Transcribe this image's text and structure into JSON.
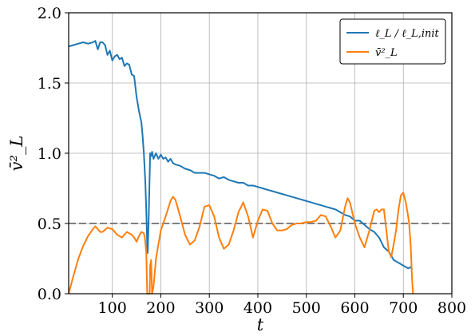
{
  "chart_data": {
    "type": "line",
    "title": "",
    "xlabel": "t",
    "ylabel": "v̄²_L",
    "xlim": [
      10,
      800
    ],
    "ylim": [
      0.0,
      2.0
    ],
    "xticks": [
      100,
      200,
      300,
      400,
      500,
      600,
      700,
      800
    ],
    "yticks": [
      0.0,
      0.5,
      1.0,
      1.5,
      2.0
    ],
    "xtick_labels": [
      "100",
      "200",
      "300",
      "400",
      "500",
      "600",
      "700",
      "800"
    ],
    "ytick_labels": [
      "0.0",
      "0.5",
      "1.0",
      "1.5",
      "2.0"
    ],
    "grid": true,
    "legend_position": "top-right",
    "hline": {
      "y": 0.5,
      "style": "dashed",
      "color": "#808080"
    },
    "series": [
      {
        "name": "ℓ_L / ℓ_L,init",
        "color": "#1f77b4",
        "x": [
          10,
          20,
          30,
          40,
          50,
          60,
          65,
          70,
          75,
          80,
          85,
          90,
          95,
          100,
          105,
          110,
          115,
          120,
          125,
          130,
          135,
          140,
          145,
          150,
          155,
          160,
          162,
          165,
          168,
          170,
          172,
          173,
          175,
          178,
          180,
          182,
          185,
          190,
          195,
          200,
          205,
          210,
          215,
          220,
          225,
          230,
          240,
          250,
          260,
          270,
          280,
          290,
          300,
          310,
          320,
          330,
          340,
          350,
          360,
          370,
          380,
          390,
          400,
          410,
          420,
          430,
          440,
          450,
          460,
          470,
          480,
          490,
          500,
          510,
          520,
          530,
          540,
          550,
          560,
          570,
          580,
          590,
          600,
          610,
          620,
          630,
          640,
          650,
          660,
          670,
          680,
          690,
          700,
          710,
          715,
          718
        ],
        "y": [
          1.76,
          1.77,
          1.78,
          1.79,
          1.78,
          1.79,
          1.8,
          1.74,
          1.79,
          1.79,
          1.77,
          1.7,
          1.73,
          1.66,
          1.69,
          1.7,
          1.67,
          1.68,
          1.62,
          1.64,
          1.63,
          1.56,
          1.55,
          1.4,
          1.3,
          1.22,
          1.14,
          1.0,
          0.8,
          0.6,
          0.35,
          0.29,
          0.55,
          1.0,
          0.98,
          1.01,
          0.96,
          1.0,
          0.96,
          0.99,
          0.96,
          0.97,
          0.94,
          0.96,
          0.93,
          0.92,
          0.91,
          0.89,
          0.88,
          0.86,
          0.86,
          0.86,
          0.85,
          0.84,
          0.82,
          0.83,
          0.81,
          0.8,
          0.79,
          0.79,
          0.77,
          0.77,
          0.76,
          0.75,
          0.74,
          0.73,
          0.72,
          0.71,
          0.7,
          0.69,
          0.68,
          0.67,
          0.66,
          0.65,
          0.64,
          0.63,
          0.62,
          0.61,
          0.6,
          0.58,
          0.56,
          0.55,
          0.52,
          0.52,
          0.49,
          0.46,
          0.44,
          0.4,
          0.33,
          0.3,
          0.24,
          0.22,
          0.2,
          0.18,
          0.19,
          0.17
        ]
      },
      {
        "name": "v̄²_L",
        "color": "#ff7f0e",
        "x": [
          10,
          20,
          30,
          40,
          50,
          60,
          65,
          70,
          75,
          80,
          90,
          100,
          110,
          120,
          130,
          140,
          145,
          150,
          155,
          160,
          165,
          167,
          170,
          172,
          175,
          177,
          178,
          180,
          182,
          185,
          190,
          200,
          210,
          220,
          225,
          230,
          240,
          250,
          260,
          270,
          280,
          290,
          300,
          310,
          320,
          330,
          340,
          350,
          360,
          370,
          380,
          390,
          400,
          410,
          420,
          430,
          440,
          450,
          460,
          470,
          480,
          490,
          500,
          510,
          520,
          530,
          540,
          550,
          560,
          570,
          580,
          585,
          590,
          600,
          610,
          620,
          630,
          640,
          645,
          650,
          655,
          660,
          665,
          670,
          675,
          680,
          685,
          690,
          695,
          700,
          705,
          710,
          712,
          715,
          718,
          720
        ],
        "y": [
          0.0,
          0.13,
          0.25,
          0.34,
          0.41,
          0.46,
          0.48,
          0.46,
          0.44,
          0.44,
          0.47,
          0.46,
          0.42,
          0.4,
          0.44,
          0.42,
          0.4,
          0.37,
          0.41,
          0.44,
          0.43,
          0.4,
          0.3,
          0.0,
          0.0,
          0.0,
          0.2,
          0.24,
          0.0,
          0.05,
          0.25,
          0.45,
          0.55,
          0.66,
          0.69,
          0.67,
          0.55,
          0.42,
          0.35,
          0.38,
          0.48,
          0.62,
          0.63,
          0.55,
          0.4,
          0.32,
          0.35,
          0.45,
          0.58,
          0.65,
          0.55,
          0.4,
          0.52,
          0.6,
          0.59,
          0.5,
          0.45,
          0.45,
          0.46,
          0.49,
          0.5,
          0.5,
          0.51,
          0.51,
          0.52,
          0.56,
          0.55,
          0.48,
          0.4,
          0.45,
          0.62,
          0.68,
          0.65,
          0.5,
          0.4,
          0.33,
          0.45,
          0.59,
          0.6,
          0.58,
          0.6,
          0.6,
          0.45,
          0.3,
          0.26,
          0.35,
          0.45,
          0.6,
          0.7,
          0.72,
          0.65,
          0.55,
          0.5,
          0.35,
          0.1,
          0.0
        ]
      }
    ]
  }
}
